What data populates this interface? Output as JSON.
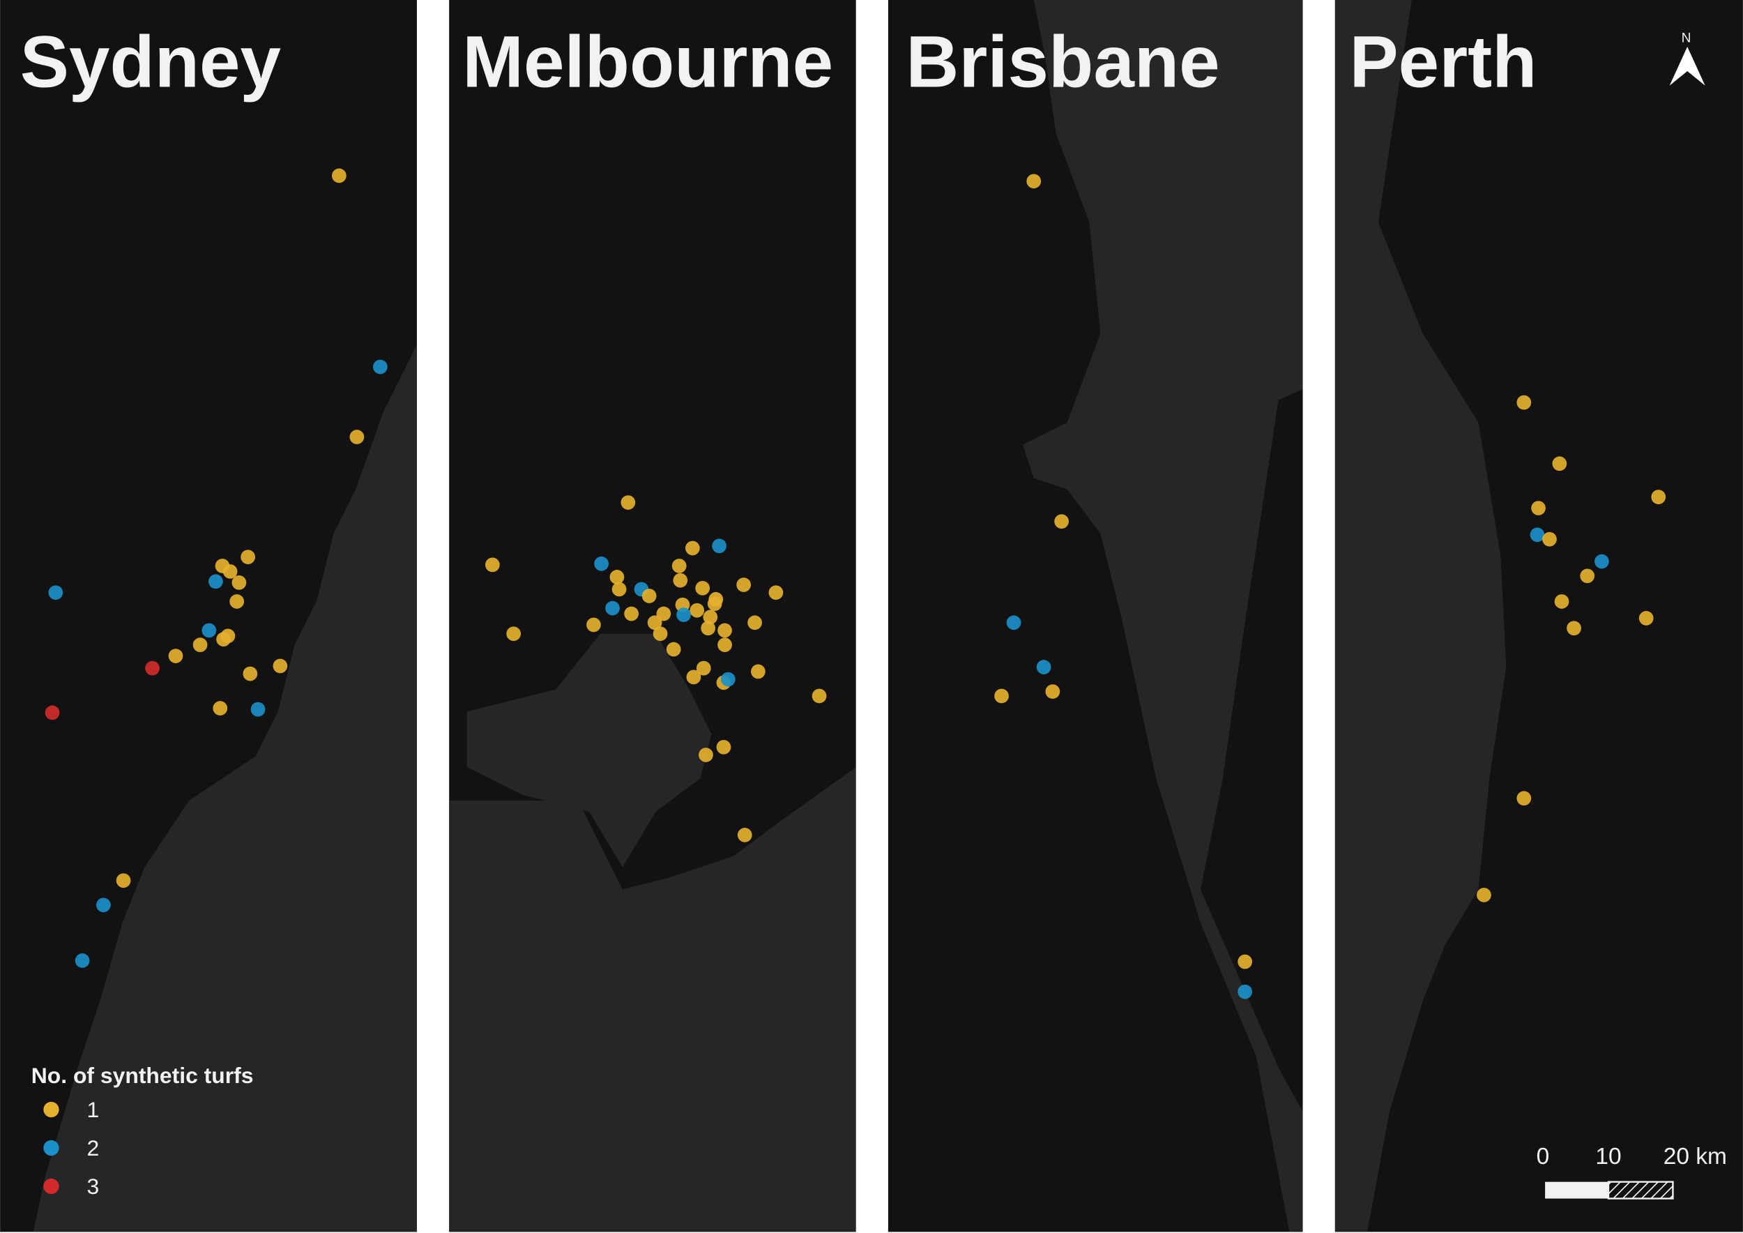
{
  "panels": [
    {
      "title": "Sydney",
      "site_counts": [
        1,
        2,
        1,
        1,
        1,
        1,
        2,
        1,
        2,
        1,
        2,
        1,
        1,
        1,
        1,
        3,
        1,
        1,
        3,
        1,
        2,
        1,
        2,
        2
      ]
    },
    {
      "title": "Melbourne",
      "site_counts": [
        1,
        1,
        2,
        1,
        2,
        1,
        1,
        1,
        1,
        1,
        1,
        1,
        2,
        1,
        1,
        1,
        1,
        2,
        1,
        1,
        1,
        1,
        2,
        1,
        1,
        1,
        1,
        1,
        1,
        1,
        1,
        1,
        1,
        1,
        1,
        1,
        2,
        1,
        1,
        1,
        1
      ]
    },
    {
      "title": "Brisbane",
      "site_counts": [
        1,
        1,
        2,
        2,
        1,
        1,
        1,
        2
      ]
    },
    {
      "title": "Perth",
      "site_counts": [
        1,
        1,
        1,
        1,
        2,
        1,
        2,
        1,
        1,
        1,
        1,
        1,
        1
      ]
    }
  ],
  "legend": {
    "title": "No. of synthetic turfs",
    "items": [
      {
        "value": 1,
        "color": "#e5b02f"
      },
      {
        "value": 2,
        "color": "#1b8fc8"
      },
      {
        "value": 3,
        "color": "#d12b2b"
      }
    ]
  },
  "scale_bar": {
    "labels": [
      "0",
      "10",
      "20 km"
    ]
  },
  "north_arrow": "N"
}
